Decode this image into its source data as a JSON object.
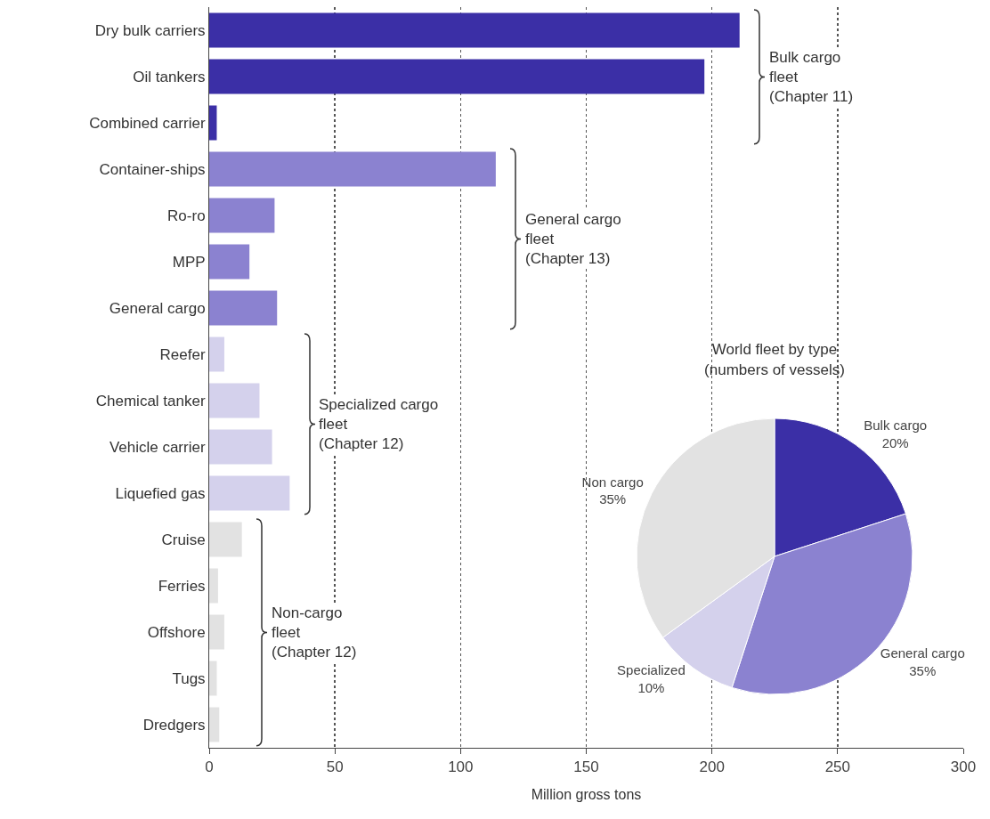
{
  "chart_data": [
    {
      "type": "bar",
      "orientation": "horizontal",
      "xlabel": "Million gross tons",
      "categories": [
        "Dry bulk carriers",
        "Oil tankers",
        "Combined carrier",
        "Container-ships",
        "Ro-ro",
        "MPP",
        "General cargo",
        "Reefer",
        "Chemical tanker",
        "Vehicle carrier",
        "Liquefied gas",
        "Cruise",
        "Ferries",
        "Offshore",
        "Tugs",
        "Dredgers"
      ],
      "values": [
        211,
        197,
        3,
        114,
        26,
        16,
        27,
        6,
        20,
        25,
        32,
        13,
        3.5,
        6,
        3,
        4
      ],
      "colors": [
        "#3b2fa6",
        "#3b2fa6",
        "#3b2fa6",
        "#8b82d0",
        "#8b82d0",
        "#8b82d0",
        "#8b82d0",
        "#d4d1ec",
        "#d4d1ec",
        "#d4d1ec",
        "#d4d1ec",
        "#e2e2e2",
        "#e2e2e2",
        "#e2e2e2",
        "#e2e2e2",
        "#e2e2e2"
      ],
      "xlim": [
        0,
        300
      ],
      "xticks": [
        0,
        50,
        100,
        150,
        200,
        250,
        300
      ],
      "grid": "x",
      "annotations": [
        "Bulk cargo\nfleet\n(Chapter 11)",
        "General cargo\nfleet\n(Chapter 13)",
        "Specialized cargo\nfleet\n(Chapter 12)",
        "Non-cargo\nfleet\n(Chapter 12)"
      ]
    },
    {
      "type": "pie",
      "title": "World fleet by type\n(numbers of vessels)",
      "categories": [
        "Bulk cargo",
        "General cargo",
        "Specialized",
        "Non cargo"
      ],
      "values": [
        20,
        35,
        10,
        35
      ],
      "value_labels": [
        "20%",
        "35%",
        "10%",
        "35%"
      ],
      "colors": [
        "#3b2fa6",
        "#8b82d0",
        "#d4d1ec",
        "#e2e2e2"
      ],
      "legend": false
    }
  ]
}
